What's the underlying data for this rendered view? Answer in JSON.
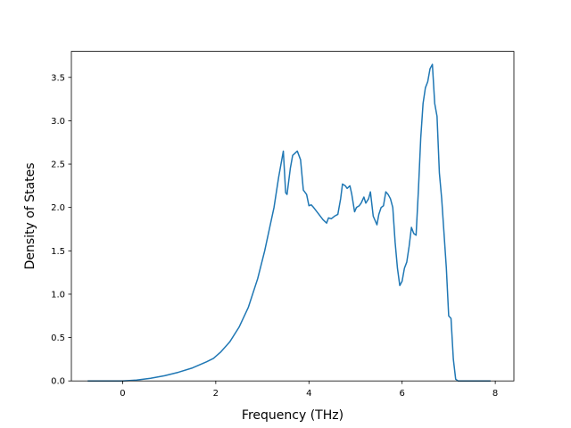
{
  "chart_data": {
    "type": "line",
    "title": "",
    "xlabel": "Frequency (THz)",
    "ylabel": "Density of States",
    "xlim": [
      -1.1,
      8.4
    ],
    "ylim": [
      0,
      3.8
    ],
    "xticks": [
      0,
      2,
      4,
      6,
      8
    ],
    "yticks": [
      0.0,
      0.5,
      1.0,
      1.5,
      2.0,
      2.5,
      3.0,
      3.5
    ],
    "xtick_labels": [
      "0",
      "2",
      "4",
      "6",
      "8"
    ],
    "ytick_labels": [
      "0.0",
      "0.5",
      "1.0",
      "1.5",
      "2.0",
      "2.5",
      "3.0",
      "3.5"
    ],
    "grid": false,
    "legend": "none",
    "color": "#1f77b4",
    "series": [
      {
        "x": [
          -0.75,
          0.0,
          0.3,
          0.6,
          0.9,
          1.2,
          1.5,
          1.8,
          1.95,
          2.1,
          2.3,
          2.5,
          2.7,
          2.9,
          3.05,
          3.15,
          3.25,
          3.35,
          3.45,
          3.5,
          3.53,
          3.6,
          3.65,
          3.75,
          3.82,
          3.88,
          3.95,
          4.0,
          4.05,
          4.1,
          4.2,
          4.3,
          4.38,
          4.42,
          4.48,
          4.55,
          4.62,
          4.68,
          4.72,
          4.78,
          4.82,
          4.88,
          4.92,
          4.98,
          5.02,
          5.08,
          5.12,
          5.18,
          5.22,
          5.28,
          5.32,
          5.38,
          5.42,
          5.46,
          5.5,
          5.55,
          5.6,
          5.65,
          5.7,
          5.75,
          5.8,
          5.85,
          5.9,
          5.95,
          6.0,
          6.05,
          6.1,
          6.15,
          6.2,
          6.25,
          6.3,
          6.35,
          6.4,
          6.45,
          6.5,
          6.55,
          6.6,
          6.65,
          6.7,
          6.75,
          6.8,
          6.85,
          6.9,
          6.95,
          7.0,
          7.05,
          7.1,
          7.15,
          7.2,
          7.25,
          7.9
        ],
        "y": [
          0.0,
          0.0,
          0.01,
          0.03,
          0.06,
          0.1,
          0.15,
          0.22,
          0.26,
          0.33,
          0.45,
          0.62,
          0.85,
          1.18,
          1.5,
          1.75,
          2.0,
          2.35,
          2.65,
          2.17,
          2.15,
          2.45,
          2.6,
          2.65,
          2.55,
          2.2,
          2.15,
          2.02,
          2.03,
          2.0,
          1.93,
          1.86,
          1.82,
          1.88,
          1.87,
          1.9,
          1.92,
          2.1,
          2.27,
          2.25,
          2.22,
          2.25,
          2.15,
          1.95,
          2.0,
          2.02,
          2.05,
          2.12,
          2.05,
          2.1,
          2.18,
          1.9,
          1.85,
          1.8,
          1.92,
          2.0,
          2.02,
          2.18,
          2.15,
          2.1,
          2.0,
          1.6,
          1.3,
          1.1,
          1.15,
          1.3,
          1.37,
          1.55,
          1.77,
          1.7,
          1.68,
          2.2,
          2.8,
          3.2,
          3.38,
          3.45,
          3.6,
          3.65,
          3.2,
          3.05,
          2.4,
          2.1,
          1.7,
          1.3,
          0.75,
          0.72,
          0.25,
          0.02,
          0.0,
          0.0,
          0.0
        ]
      }
    ]
  }
}
